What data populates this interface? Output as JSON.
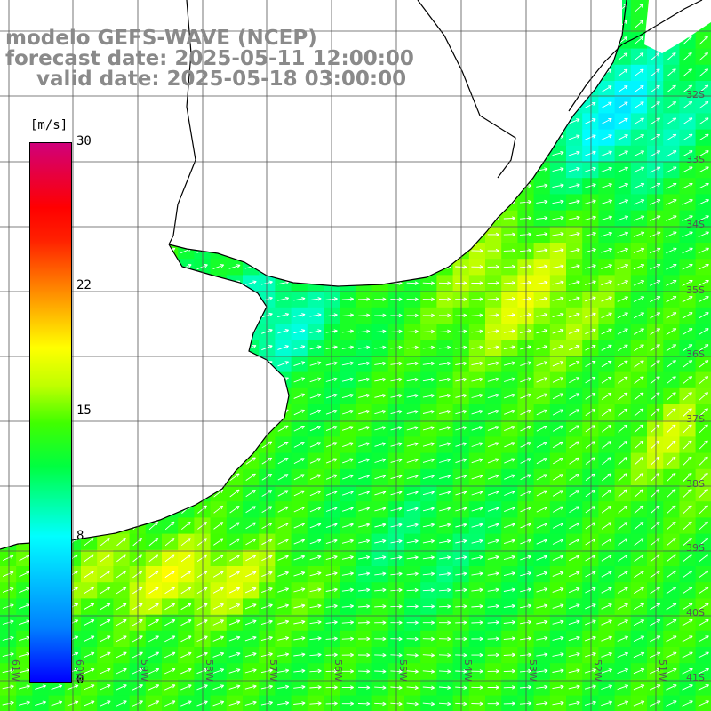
{
  "title": {
    "line1": "modelo GEFS-WAVE (NCEP)",
    "line2": "forecast date: 2025-05-11 12:00:00",
    "line3": "valid date: 2025-05-18 03:00:00"
  },
  "colorbar": {
    "unit": "[m/s]",
    "ticks": [
      "30",
      "22",
      "15",
      "8",
      "0"
    ],
    "tick_values": [
      30,
      22,
      15,
      8,
      0
    ],
    "min": 0,
    "max": 30
  },
  "lat_labels": [
    "32S",
    "33S",
    "34S",
    "35S",
    "36S",
    "37S",
    "38S",
    "39S",
    "40S",
    "41S"
  ],
  "lon_labels": [
    "61W",
    "60W",
    "59W",
    "58W",
    "57W",
    "56W",
    "55W",
    "54W",
    "53W",
    "52W",
    "51W"
  ],
  "colors": {
    "land": "#ffffff",
    "coast": "#000000",
    "grid": "#555555",
    "arrows": "#ffffff",
    "title": "#8a8a8a"
  },
  "field": {
    "variable": "wind speed",
    "unit": "m/s",
    "arrow_direction": "toward northeast"
  }
}
